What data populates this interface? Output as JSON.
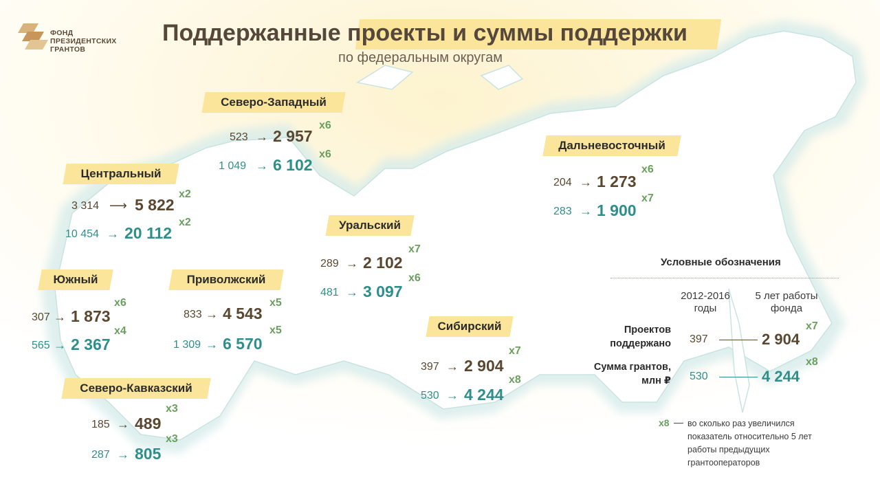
{
  "logo": {
    "line1": "ФОНД",
    "line2": "ПРЕЗИДЕНТСКИХ",
    "line3": "ГРАНТОВ"
  },
  "title": "Поддержанные проекты и суммы поддержки",
  "subtitle": "по федеральным округам",
  "colors": {
    "projects": "#5a4730",
    "grants": "#2e8f8a",
    "multiplier": "#6aa05e",
    "label_bg": "#fbe59b"
  },
  "regions": [
    {
      "name": "Северо-Западный",
      "projects_from": "523",
      "projects_to": "2 957",
      "projects_mult": "х6",
      "grants_from": "1 049",
      "grants_to": "6 102",
      "grants_mult": "х6"
    },
    {
      "name": "Центральный",
      "projects_from": "3 314",
      "projects_to": "5 822",
      "projects_mult": "х2",
      "grants_from": "10 454",
      "grants_to": "20 112",
      "grants_mult": "х2"
    },
    {
      "name": "Южный",
      "projects_from": "307",
      "projects_to": "1 873",
      "projects_mult": "х6",
      "grants_from": "565",
      "grants_to": "2 367",
      "grants_mult": "х4"
    },
    {
      "name": "Приволжский",
      "projects_from": "833",
      "projects_to": "4 543",
      "projects_mult": "х5",
      "grants_from": "1 309",
      "grants_to": "6 570",
      "grants_mult": "х5"
    },
    {
      "name": "Северо-Кавказский",
      "projects_from": "185",
      "projects_to": "489",
      "projects_mult": "х3",
      "grants_from": "287",
      "grants_to": "805",
      "grants_mult": "х3"
    },
    {
      "name": "Уральский",
      "projects_from": "289",
      "projects_to": "2 102",
      "projects_mult": "х7",
      "grants_from": "481",
      "grants_to": "3 097",
      "grants_mult": "х6"
    },
    {
      "name": "Сибирский",
      "projects_from": "397",
      "projects_to": "2 904",
      "projects_mult": "х7",
      "grants_from": "530",
      "grants_to": "4 244",
      "grants_mult": "х8"
    },
    {
      "name": "Дальневосточный",
      "projects_from": "204",
      "projects_to": "1 273",
      "projects_mult": "х6",
      "grants_from": "283",
      "grants_to": "1 900",
      "grants_mult": "х7"
    }
  ],
  "legend": {
    "title": "Условные обозначения",
    "col1": "2012-2016 годы",
    "col2": "5 лет работы фонда",
    "row1_label": "Проектов поддержано",
    "row2_label": "Сумма грантов, млн ₽",
    "row1_from": "397",
    "row1_to": "2 904",
    "row1_mult": "х7",
    "row2_from": "530",
    "row2_to": "4 244",
    "row2_mult": "х8",
    "note_key": "х8",
    "note_dash": "—",
    "note": "во сколько раз увеличился показатель относительно 5 лет работы предыдущих грантооператоров"
  }
}
